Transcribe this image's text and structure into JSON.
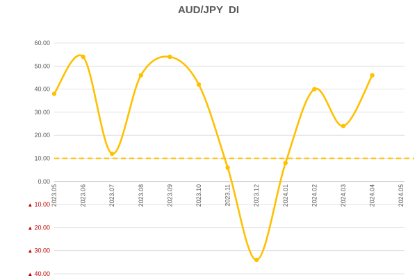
{
  "chart_data": {
    "type": "line",
    "title": "AUD/JPY  DI",
    "x": [
      "2023.05",
      "2023.06",
      "2023.07",
      "2023.08",
      "2023.09",
      "2023.10",
      "2023.11",
      "2023.12",
      "2024.01",
      "2024.02",
      "2024.03",
      "2024.04",
      "2024.05"
    ],
    "series": [
      {
        "values": [
          38,
          54,
          12,
          46,
          54,
          42,
          6,
          -34,
          8,
          40,
          24,
          46,
          null
        ],
        "color": "#FFC000"
      }
    ],
    "reference_line": {
      "value": 10,
      "style": "dashed",
      "color": "#FFC000"
    },
    "y_ticks": [
      {
        "value": 60,
        "label": "60.00",
        "negative": false
      },
      {
        "value": 50,
        "label": "50.00",
        "negative": false
      },
      {
        "value": 40,
        "label": "40.00",
        "negative": false
      },
      {
        "value": 30,
        "label": "30.00",
        "negative": false
      },
      {
        "value": 20,
        "label": "20.00",
        "negative": false
      },
      {
        "value": 10,
        "label": "10.00",
        "negative": false
      },
      {
        "value": 0,
        "label": "0.00",
        "negative": false
      },
      {
        "value": -10,
        "label": "10.00",
        "negative": true
      },
      {
        "value": -20,
        "label": "20.00",
        "negative": true
      },
      {
        "value": -30,
        "label": "30.00",
        "negative": true
      },
      {
        "value": -40,
        "label": "40.00",
        "negative": true
      }
    ],
    "negative_marker": "▲",
    "negative_color": "#C00000",
    "ylim": [
      -40,
      60
    ],
    "grid": true,
    "legend": "none",
    "xlabel": "",
    "ylabel": ""
  }
}
